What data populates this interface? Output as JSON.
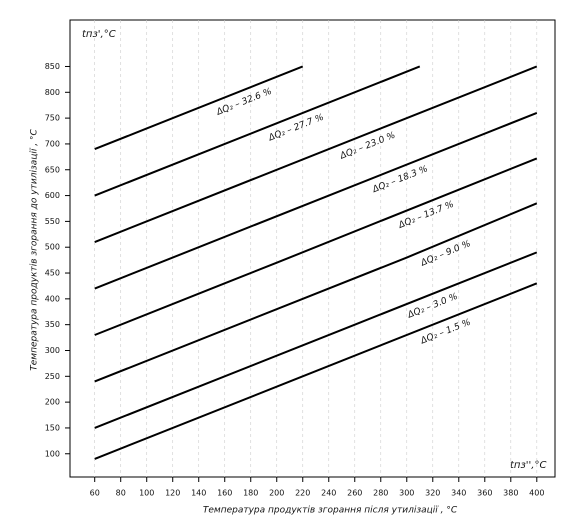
{
  "chart_data": {
    "type": "line",
    "y_corner_label": "tпз',°C",
    "x_corner_label": "tпз'',°C",
    "xlabel": "Температура продуктів згорання після утилізації , °C",
    "ylabel": "Температура продуктів згорання до утилізації , °C",
    "xlim": [
      41,
      414
    ],
    "ylim": [
      55,
      940
    ],
    "xticks": [
      60,
      80,
      100,
      120,
      140,
      160,
      180,
      200,
      220,
      240,
      260,
      280,
      300,
      320,
      340,
      360,
      380,
      400
    ],
    "yticks": [
      100,
      150,
      200,
      250,
      300,
      350,
      400,
      450,
      500,
      550,
      600,
      650,
      700,
      750,
      800,
      850
    ],
    "grid": true,
    "series": [
      {
        "name": "ΔQ₂ – 32.6 %",
        "color": "#000000",
        "x": [
          60,
          220
        ],
        "values": [
          690,
          850
        ]
      },
      {
        "name": "ΔQ₂ – 27.7 %",
        "color": "#000000",
        "x": [
          60,
          310
        ],
        "values": [
          600,
          850
        ]
      },
      {
        "name": "ΔQ₂ – 23.0 %",
        "color": "#000000",
        "x": [
          60,
          400
        ],
        "values": [
          510,
          850
        ]
      },
      {
        "name": "ΔQ₂ – 18.3 %",
        "color": "#000000",
        "x": [
          60,
          400
        ],
        "values": [
          420,
          760
        ]
      },
      {
        "name": "ΔQ₂ – 13.7 %",
        "color": "#000000",
        "x": [
          60,
          160,
          200,
          400
        ],
        "values": [
          330,
          430,
          470,
          672
        ]
      },
      {
        "name": "ΔQ₂ – 9.0 %",
        "color": "#000000",
        "x": [
          60,
          300,
          400
        ],
        "values": [
          240,
          480,
          585
        ]
      },
      {
        "name": "ΔQ₂ – 3.0 %",
        "color": "#000000",
        "x": [
          60,
          260,
          400
        ],
        "values": [
          150,
          350,
          490
        ]
      },
      {
        "name": "ΔQ₂ – 1.5 %",
        "color": "#000000",
        "x": [
          60,
          400
        ],
        "values": [
          90,
          430
        ]
      }
    ]
  }
}
